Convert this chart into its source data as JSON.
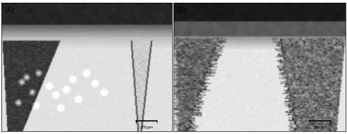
{
  "panel_A_label": "(A)",
  "panel_B_label": "(B)",
  "scale_bar_text": "100μm",
  "label_fontsize": 7,
  "scale_fontsize": 4,
  "bg_color": "#ffffff",
  "fig_width": 5.0,
  "fig_height": 1.94,
  "dpi": 100
}
